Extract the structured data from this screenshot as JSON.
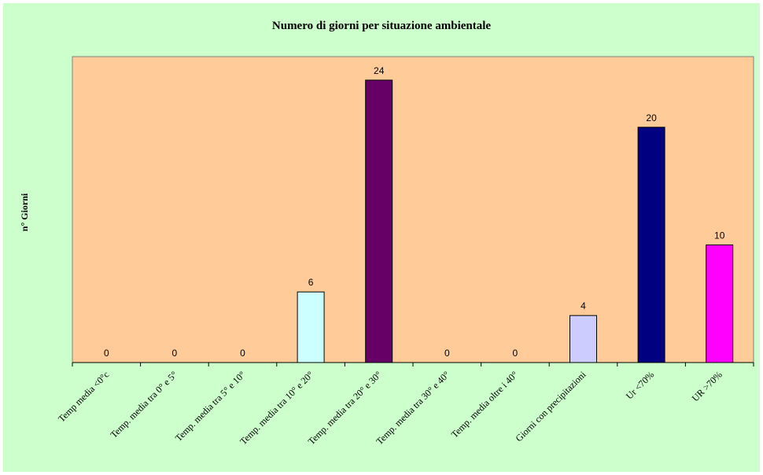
{
  "chart_data": {
    "type": "bar",
    "title": "Numero di giorni per situazione ambientale",
    "ylabel": "n° Giorni",
    "xlabel": "",
    "ylim": [
      0,
      26
    ],
    "grid": false,
    "legend": "none",
    "categories": [
      "Temp media <0°c",
      "Temp. media tra 0° e 5°",
      "Temp. media tra 5° e 10°",
      "Temp. media tra 10° e 20°",
      "Temp. media tra 20° e 30°",
      "Temp. media tra 30° e 40°",
      "Temp. media oltre i 40°",
      "Giorni con precipitazioni",
      "Ur  <70%",
      "UR >70%"
    ],
    "values": [
      0,
      0,
      0,
      6,
      24,
      0,
      0,
      4,
      20,
      10
    ],
    "bar_colors": [
      "#ccffff",
      "#ccffff",
      "#ccffff",
      "#ccffff",
      "#660066",
      "#ccffff",
      "#ccffff",
      "#ccccff",
      "#000080",
      "#ff00ff"
    ],
    "plot_background": "#ffcc99",
    "chart_background": "#ccffcc"
  }
}
